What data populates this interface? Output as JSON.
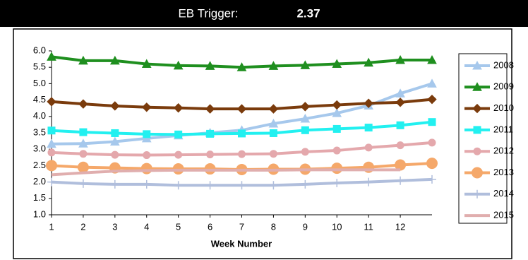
{
  "header": {
    "label": "EB Trigger:",
    "value": "2.37"
  },
  "chart_data": {
    "type": "line",
    "x": [
      1,
      2,
      3,
      4,
      5,
      6,
      7,
      8,
      9,
      10,
      11,
      12,
      13
    ],
    "xlim": [
      1,
      13
    ],
    "xticks": [
      1,
      2,
      3,
      4,
      5,
      6,
      7,
      8,
      9,
      10,
      11,
      12
    ],
    "ylim": [
      1,
      6
    ],
    "yticks": [
      {
        "value": 1,
        "label": "1.0"
      },
      {
        "value": 1.5,
        "label": "1.5"
      },
      {
        "value": 2,
        "label": "2.0"
      },
      {
        "value": 2.5,
        "label": "2.5"
      },
      {
        "value": 3,
        "label": "3.0"
      },
      {
        "value": 3.5,
        "label": "3.5"
      },
      {
        "value": 4,
        "label": "4.0"
      },
      {
        "value": 4.5,
        "label": "4.5"
      },
      {
        "value": 5,
        "label": "5.0"
      },
      {
        "value": 5.5,
        "label": "5.5"
      },
      {
        "value": 6,
        "label": "6.0"
      }
    ],
    "x_label": "Week Number",
    "legend": "right",
    "series": [
      {
        "name": "2008",
        "color": "#a6c8ec",
        "marker": "triangle",
        "values": [
          3.16,
          3.17,
          3.23,
          3.33,
          3.42,
          3.5,
          3.58,
          3.78,
          3.93,
          4.1,
          4.33,
          4.7,
          5.0
        ]
      },
      {
        "name": "2009",
        "color": "#1f8f1f",
        "marker": "triangle",
        "values": [
          5.82,
          5.7,
          5.7,
          5.6,
          5.55,
          5.54,
          5.5,
          5.54,
          5.56,
          5.6,
          5.64,
          5.72,
          5.72
        ]
      },
      {
        "name": "2010",
        "color": "#7a3b0c",
        "marker": "diamond",
        "values": [
          4.45,
          4.38,
          4.32,
          4.28,
          4.26,
          4.23,
          4.23,
          4.23,
          4.3,
          4.35,
          4.4,
          4.43,
          4.52
        ]
      },
      {
        "name": "2011",
        "color": "#22f0f0",
        "marker": "square",
        "values": [
          3.57,
          3.52,
          3.49,
          3.46,
          3.45,
          3.47,
          3.48,
          3.49,
          3.58,
          3.62,
          3.66,
          3.73,
          3.83
        ]
      },
      {
        "name": "2012",
        "color": "#e4a8ac",
        "marker": "circle",
        "values": [
          2.9,
          2.86,
          2.83,
          2.82,
          2.83,
          2.84,
          2.85,
          2.86,
          2.92,
          2.96,
          3.05,
          3.12,
          3.2
        ]
      },
      {
        "name": "2013",
        "color": "#f5a86a",
        "marker": "bigcircle",
        "values": [
          2.5,
          2.45,
          2.43,
          2.41,
          2.4,
          2.4,
          2.38,
          2.39,
          2.39,
          2.42,
          2.45,
          2.52,
          2.57
        ]
      },
      {
        "name": "2014",
        "color": "#b0bedc",
        "marker": "plus",
        "values": [
          2.0,
          1.95,
          1.93,
          1.93,
          1.9,
          1.9,
          1.9,
          1.9,
          1.93,
          1.97,
          2.0,
          2.04,
          2.08
        ]
      },
      {
        "name": "2015",
        "color": "#e0aeae",
        "marker": "none",
        "values": [
          2.22,
          2.28,
          2.33,
          2.35,
          2.36,
          2.36,
          2.36,
          2.36,
          2.37,
          2.37,
          2.37,
          2.37,
          null
        ]
      }
    ]
  }
}
